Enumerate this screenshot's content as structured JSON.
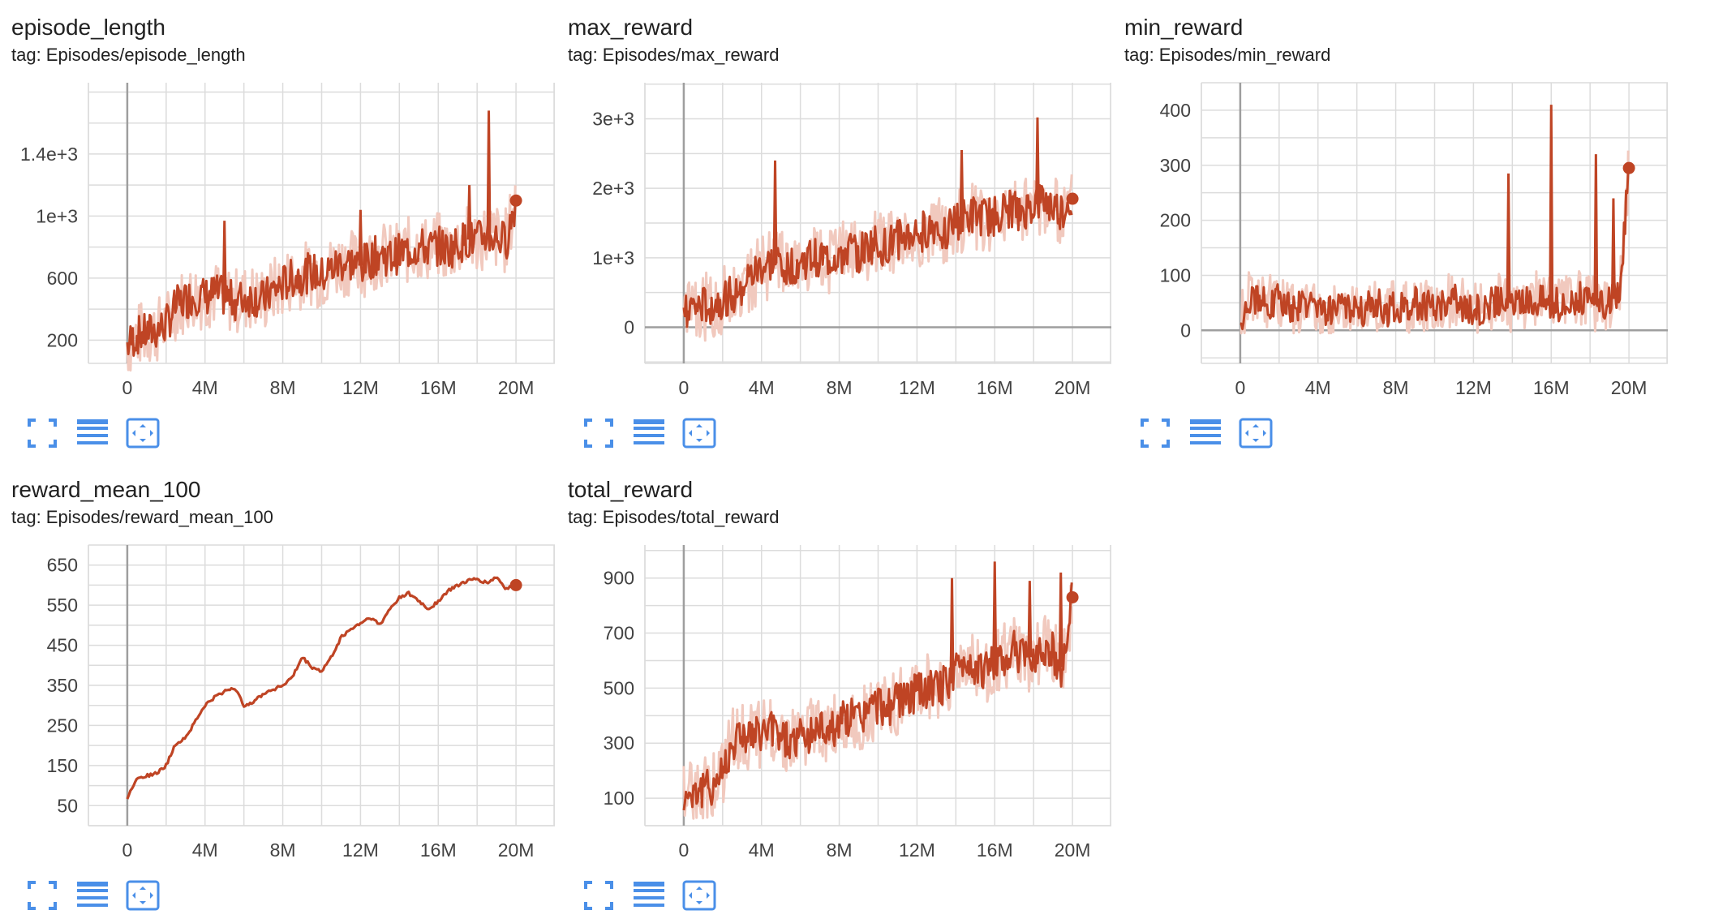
{
  "colors": {
    "series": "#bf4424",
    "series_raw": "#f1c9be",
    "grid": "#dcdcdc",
    "axis": "#9e9e9e",
    "icon": "#4a8fe8"
  },
  "toolbar": {
    "icons": [
      "fullscreen-icon",
      "data-table-icon",
      "fit-domain-icon"
    ]
  },
  "cards": [
    {
      "title": "episode_length",
      "tag": "tag: Episodes/episode_length",
      "chart_data": {
        "type": "line",
        "title": "episode_length",
        "xticks": [
          "0",
          "4M",
          "8M",
          "12M",
          "16M",
          "20M"
        ],
        "xtick_values": [
          0,
          4,
          8,
          12,
          16,
          20
        ],
        "yticks": [
          "200",
          "600",
          "1e+3",
          "1.4e+3"
        ],
        "ytick_values": [
          200,
          600,
          1000,
          1400
        ],
        "xlim": [
          -2.0,
          22.0
        ],
        "ylim": [
          50,
          1860
        ],
        "x_unit": "M steps",
        "series": [
          {
            "x": [
              0,
              0.5,
              1,
              1.5,
              2,
              2.5,
              3,
              3.5,
              4,
              4.5,
              5,
              5.5,
              6,
              6.5,
              7,
              7.5,
              8,
              8.5,
              9,
              9.5,
              10,
              10.5,
              11,
              11.5,
              12,
              12.5,
              13,
              13.5,
              14,
              14.5,
              15,
              15.5,
              16,
              16.5,
              17,
              17.5,
              18,
              18.5,
              19,
              19.5,
              20
            ],
            "values": [
              170,
              230,
              245,
              265,
              300,
              420,
              460,
              490,
              480,
              500,
              480,
              450,
              470,
              480,
              460,
              520,
              560,
              600,
              620,
              640,
              610,
              660,
              700,
              700,
              680,
              720,
              760,
              730,
              760,
              780,
              800,
              790,
              810,
              780,
              820,
              850,
              840,
              880,
              860,
              840,
              1100
            ],
            "spikes": [
              {
                "x": 18.6,
                "value": 1680
              },
              {
                "x": 17.6,
                "value": 1200
              },
              {
                "x": 5.0,
                "value": 970
              },
              {
                "x": 12.0,
                "value": 1040
              }
            ]
          }
        ]
      }
    },
    {
      "title": "max_reward",
      "tag": "tag: Episodes/max_reward",
      "chart_data": {
        "type": "line",
        "title": "max_reward",
        "xticks": [
          "0",
          "4M",
          "8M",
          "12M",
          "16M",
          "20M"
        ],
        "xtick_values": [
          0,
          4,
          8,
          12,
          16,
          20
        ],
        "yticks": [
          "0",
          "1e+3",
          "2e+3",
          "3e+3"
        ],
        "ytick_values": [
          0,
          1000,
          2000,
          3000
        ],
        "xlim": [
          -2.0,
          22.0
        ],
        "ylim": [
          -520,
          3520
        ],
        "x_unit": "M steps",
        "series": [
          {
            "x": [
              0,
              0.5,
              1,
              1.5,
              2,
              2.5,
              3,
              3.5,
              4,
              4.5,
              5,
              5.5,
              6,
              6.5,
              7,
              7.5,
              8,
              8.5,
              9,
              9.5,
              10,
              10.5,
              11,
              11.5,
              12,
              12.5,
              13,
              13.5,
              14,
              14.5,
              15,
              15.5,
              16,
              16.5,
              17,
              17.5,
              18,
              18.5,
              19,
              19.5,
              20
            ],
            "values": [
              300,
              250,
              280,
              330,
              380,
              480,
              620,
              720,
              850,
              900,
              950,
              880,
              900,
              980,
              1000,
              950,
              1050,
              1100,
              1050,
              1150,
              1200,
              1150,
              1250,
              1300,
              1350,
              1400,
              1450,
              1400,
              1500,
              1550,
              1600,
              1550,
              1600,
              1650,
              1700,
              1650,
              1750,
              1800,
              1700,
              1650,
              1850
            ],
            "spikes": [
              {
                "x": 4.7,
                "value": 2400
              },
              {
                "x": 18.2,
                "value": 3020
              },
              {
                "x": 14.3,
                "value": 2550
              }
            ]
          }
        ]
      }
    },
    {
      "title": "min_reward",
      "tag": "tag: Episodes/min_reward",
      "chart_data": {
        "type": "line",
        "title": "min_reward",
        "xticks": [
          "0",
          "4M",
          "8M",
          "12M",
          "16M",
          "20M"
        ],
        "xtick_values": [
          0,
          4,
          8,
          12,
          16,
          20
        ],
        "yticks": [
          "0",
          "100",
          "200",
          "300",
          "400"
        ],
        "ytick_values": [
          0,
          100,
          200,
          300,
          400
        ],
        "xlim": [
          -2.0,
          22.0
        ],
        "ylim": [
          -60,
          450
        ],
        "x_unit": "M steps",
        "series": [
          {
            "x": [
              0,
              0.5,
              1,
              1.5,
              2,
              2.5,
              3,
              3.5,
              4,
              4.5,
              5,
              5.5,
              6,
              6.5,
              7,
              7.5,
              8,
              8.5,
              9,
              9.5,
              10,
              10.5,
              11,
              11.5,
              12,
              12.5,
              13,
              13.5,
              14,
              14.5,
              15,
              15.5,
              16,
              16.5,
              17,
              17.5,
              18,
              18.5,
              19,
              19.5,
              20
            ],
            "values": [
              20,
              60,
              55,
              50,
              55,
              45,
              40,
              50,
              30,
              35,
              40,
              45,
              30,
              40,
              50,
              35,
              45,
              40,
              50,
              45,
              40,
              50,
              55,
              45,
              35,
              40,
              50,
              60,
              45,
              50,
              55,
              60,
              50,
              45,
              55,
              60,
              50,
              45,
              55,
              60,
              295
            ],
            "spikes": [
              {
                "x": 16.0,
                "value": 410
              },
              {
                "x": 13.8,
                "value": 285
              },
              {
                "x": 18.3,
                "value": 320
              },
              {
                "x": 19.2,
                "value": 240
              }
            ]
          }
        ]
      }
    },
    {
      "title": "reward_mean_100",
      "tag": "tag: Episodes/reward_mean_100",
      "chart_data": {
        "type": "line",
        "title": "reward_mean_100",
        "xticks": [
          "0",
          "4M",
          "8M",
          "12M",
          "16M",
          "20M"
        ],
        "xtick_values": [
          0,
          4,
          8,
          12,
          16,
          20
        ],
        "yticks": [
          "50",
          "150",
          "250",
          "350",
          "450",
          "550",
          "650"
        ],
        "ytick_values": [
          50,
          150,
          250,
          350,
          450,
          550,
          650
        ],
        "xlim": [
          -2.0,
          22.0
        ],
        "ylim": [
          0,
          700
        ],
        "x_unit": "M steps",
        "series": [
          {
            "x": [
              0,
              0.5,
              1,
              1.5,
              2,
              2.5,
              3,
              3.5,
              4,
              4.5,
              5,
              5.5,
              6,
              6.5,
              7,
              7.5,
              8,
              8.5,
              9,
              9.5,
              10,
              10.5,
              11,
              11.5,
              12,
              12.5,
              13,
              13.5,
              14,
              14.5,
              15,
              15.5,
              16,
              16.5,
              17,
              17.5,
              18,
              18.5,
              19,
              19.5,
              20
            ],
            "values": [
              70,
              120,
              125,
              130,
              150,
              205,
              220,
              260,
              300,
              320,
              335,
              345,
              300,
              310,
              330,
              340,
              350,
              370,
              420,
              395,
              385,
              420,
              470,
              490,
              505,
              520,
              500,
              540,
              570,
              580,
              560,
              540,
              560,
              585,
              600,
              610,
              615,
              605,
              620,
              590,
              600
            ]
          }
        ]
      }
    },
    {
      "title": "total_reward",
      "tag": "tag: Episodes/total_reward",
      "chart_data": {
        "type": "line",
        "title": "total_reward",
        "xticks": [
          "0",
          "4M",
          "8M",
          "12M",
          "16M",
          "20M"
        ],
        "xtick_values": [
          0,
          4,
          8,
          12,
          16,
          20
        ],
        "yticks": [
          "100",
          "300",
          "500",
          "700",
          "900"
        ],
        "ytick_values": [
          100,
          300,
          500,
          700,
          900
        ],
        "xlim": [
          -2.0,
          22.0
        ],
        "ylim": [
          0,
          1020
        ],
        "x_unit": "M steps",
        "series": [
          {
            "x": [
              0,
              0.5,
              1,
              1.5,
              2,
              2.5,
              3,
              3.5,
              4,
              4.5,
              5,
              5.5,
              6,
              6.5,
              7,
              7.5,
              8,
              8.5,
              9,
              9.5,
              10,
              10.5,
              11,
              11.5,
              12,
              12.5,
              13,
              13.5,
              14,
              14.5,
              15,
              15.5,
              16,
              16.5,
              17,
              17.5,
              18,
              18.5,
              19,
              19.5,
              20
            ],
            "values": [
              100,
              130,
              125,
              150,
              200,
              300,
              340,
              320,
              330,
              350,
              330,
              300,
              320,
              340,
              360,
              350,
              370,
              400,
              390,
              420,
              440,
              430,
              450,
              470,
              480,
              500,
              490,
              520,
              560,
              600,
              580,
              560,
              600,
              620,
              640,
              600,
              620,
              650,
              630,
              560,
              830
            ],
            "spikes": [
              {
                "x": 13.8,
                "value": 900
              },
              {
                "x": 16.0,
                "value": 960
              },
              {
                "x": 17.8,
                "value": 890
              },
              {
                "x": 19.4,
                "value": 920
              }
            ]
          }
        ]
      }
    }
  ]
}
